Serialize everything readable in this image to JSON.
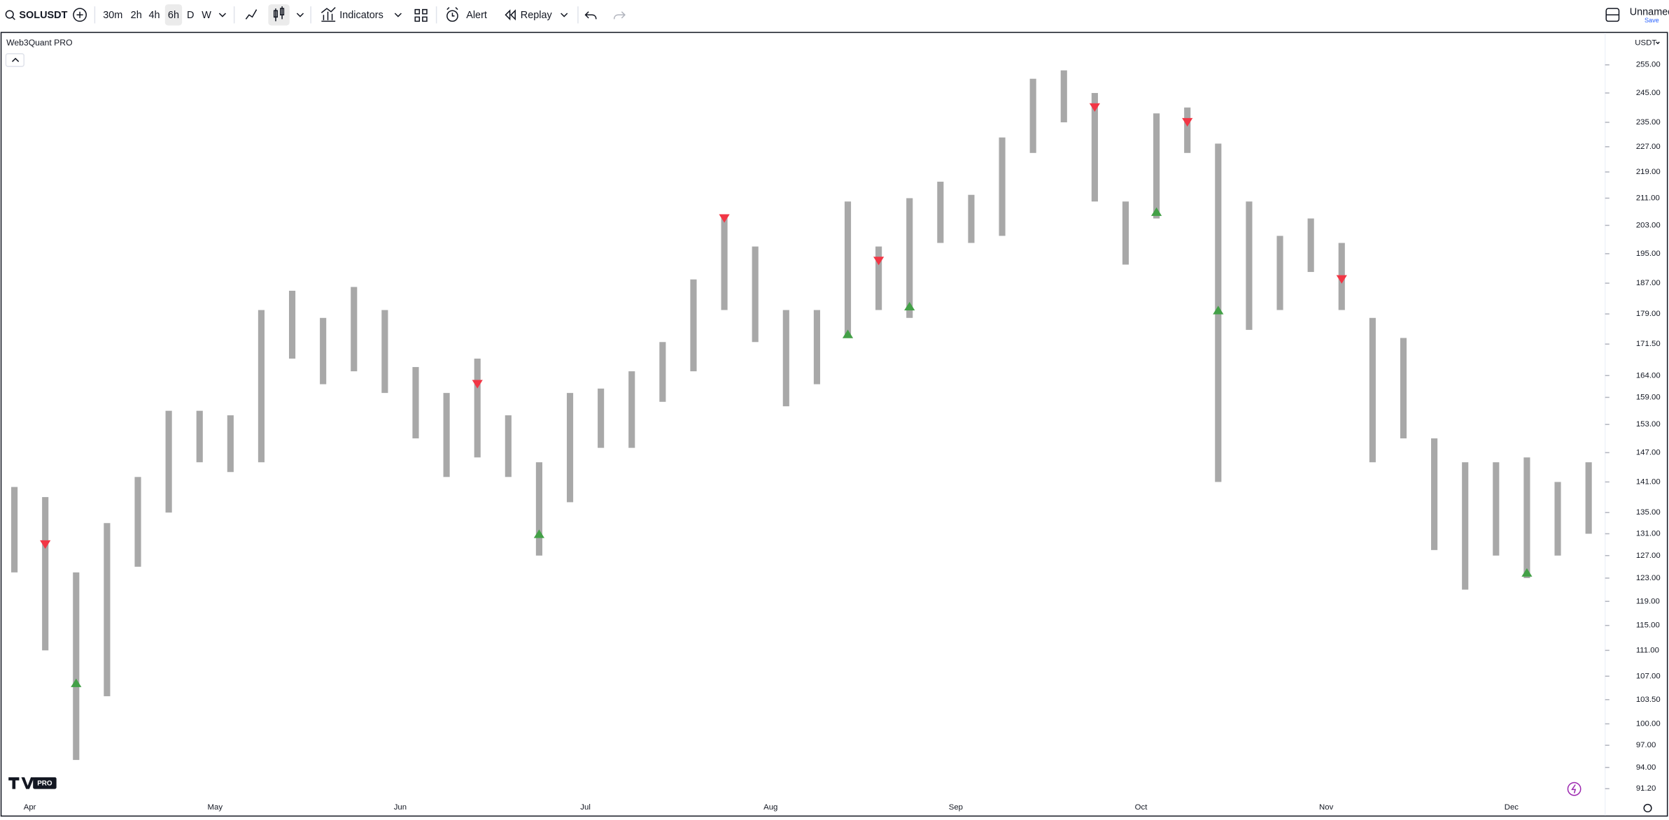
{
  "toolbar": {
    "symbol": "SOLUSDT",
    "intervals": [
      "30m",
      "2h",
      "4h",
      "6h",
      "D",
      "W"
    ],
    "indicators": "Indicators",
    "alert": "Alert",
    "replay": "Replay",
    "layout_name": "Unnamed",
    "save": "Save"
  },
  "chart_data": {
    "type": "candlestick",
    "title": "Web3Quant PRO",
    "currency": "USDT",
    "logo_badge": "PRO",
    "categories": [
      null,
      "Apr",
      null,
      null,
      null,
      null,
      null,
      "May",
      null,
      null,
      null,
      null,
      null,
      "Jun",
      null,
      null,
      null,
      null,
      null,
      "Jul",
      null,
      null,
      null,
      null,
      null,
      "Aug",
      null,
      null,
      null,
      null,
      null,
      "Sep",
      null,
      null,
      null,
      null,
      null,
      "Oct",
      null,
      null,
      null,
      null,
      null,
      "Nov",
      null,
      null,
      null,
      null,
      null,
      "Dec",
      null,
      null
    ],
    "high": [
      140,
      138,
      124,
      133,
      142,
      156,
      156,
      155,
      180,
      185,
      178,
      186,
      180,
      166,
      160,
      168,
      155,
      145,
      160,
      161,
      165,
      172,
      188,
      206,
      197,
      180,
      180,
      210,
      197,
      211,
      216,
      212,
      230,
      250,
      253,
      245,
      210,
      238,
      240,
      228,
      210,
      200,
      205,
      198,
      178,
      173,
      150,
      145,
      145,
      146,
      141,
      145
    ],
    "low": [
      124,
      111,
      95,
      104,
      125,
      135,
      145,
      143,
      145,
      168,
      162,
      165,
      160,
      150,
      142,
      146,
      142,
      127,
      137,
      148,
      148,
      158,
      165,
      180,
      172,
      157,
      162,
      173,
      180,
      178,
      198,
      198,
      200,
      225,
      235,
      210,
      192,
      205,
      225,
      141,
      175,
      180,
      190,
      180,
      145,
      150,
      128,
      121,
      127,
      123,
      127,
      131
    ],
    "color": "#a8a8a8",
    "markers": {
      "sell": {
        "color": "#f23645",
        "values": [
          null,
          129,
          null,
          null,
          null,
          null,
          null,
          null,
          null,
          null,
          null,
          null,
          null,
          null,
          null,
          162,
          null,
          null,
          null,
          null,
          null,
          null,
          null,
          205,
          null,
          null,
          null,
          null,
          193,
          null,
          null,
          null,
          null,
          null,
          null,
          240,
          null,
          null,
          235,
          null,
          null,
          null,
          null,
          188,
          null,
          null,
          null,
          null,
          null,
          null,
          null,
          null
        ]
      },
      "buy": {
        "color": "#43a047",
        "values": [
          null,
          null,
          106,
          null,
          null,
          null,
          null,
          null,
          null,
          null,
          null,
          null,
          null,
          null,
          null,
          null,
          null,
          131,
          null,
          null,
          null,
          null,
          null,
          null,
          null,
          null,
          null,
          174,
          null,
          181,
          null,
          null,
          null,
          null,
          null,
          null,
          null,
          207,
          null,
          180,
          null,
          null,
          null,
          null,
          null,
          null,
          null,
          null,
          null,
          124,
          null,
          null
        ]
      }
    },
    "ylim": [
      89.8,
      265.6
    ],
    "log_scale": true,
    "grid": false,
    "yticks": [
      {
        "value": 255,
        "label": "255.00"
      },
      {
        "value": 245,
        "label": "245.00"
      },
      {
        "value": 235,
        "label": "235.00"
      },
      {
        "value": 227,
        "label": "227.00"
      },
      {
        "value": 219,
        "label": "219.00"
      },
      {
        "value": 211,
        "label": "211.00"
      },
      {
        "value": 203,
        "label": "203.00"
      },
      {
        "value": 195,
        "label": "195.00"
      },
      {
        "value": 187,
        "label": "187.00"
      },
      {
        "value": 179,
        "label": "179.00"
      },
      {
        "value": 171.5,
        "label": "171.50"
      },
      {
        "value": 164,
        "label": "164.00"
      },
      {
        "value": 159,
        "label": "159.00"
      },
      {
        "value": 153,
        "label": "153.00"
      },
      {
        "value": 147,
        "label": "147.00"
      },
      {
        "value": 141,
        "label": "141.00"
      },
      {
        "value": 135,
        "label": "135.00"
      },
      {
        "value": 131,
        "label": "131.00"
      },
      {
        "value": 127,
        "label": "127.00"
      },
      {
        "value": 123,
        "label": "123.00"
      },
      {
        "value": 119,
        "label": "119.00"
      },
      {
        "value": 115,
        "label": "115.00"
      },
      {
        "value": 111,
        "label": "111.00"
      },
      {
        "value": 107,
        "label": "107.00"
      },
      {
        "value": 103.5,
        "label": "103.50"
      },
      {
        "value": 100,
        "label": "100.00"
      },
      {
        "value": 97,
        "label": "97.00"
      },
      {
        "value": 94,
        "label": "94.00"
      },
      {
        "value": 91.2,
        "label": "91.20"
      }
    ]
  }
}
